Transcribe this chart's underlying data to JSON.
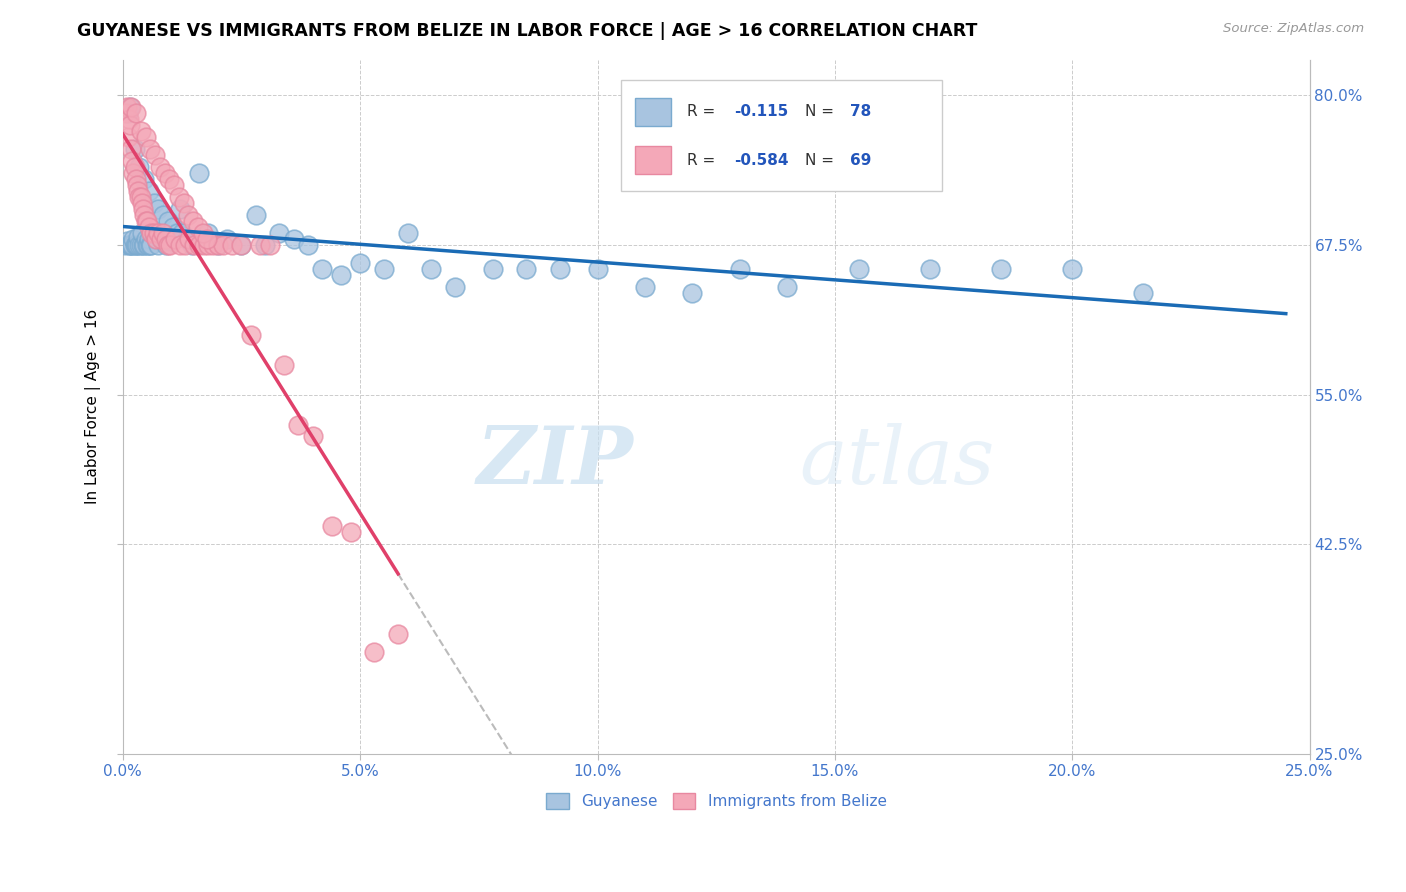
{
  "title": "GUYANESE VS IMMIGRANTS FROM BELIZE IN LABOR FORCE | AGE > 16 CORRELATION CHART",
  "source": "Source: ZipAtlas.com",
  "ylabel": "In Labor Force | Age > 16",
  "xlim": [
    0.0,
    25.0
  ],
  "ylim": [
    25.0,
    83.0
  ],
  "x_ticks": [
    0.0,
    5.0,
    10.0,
    15.0,
    20.0,
    25.0
  ],
  "y_ticks": [
    25.0,
    42.5,
    55.0,
    67.5,
    80.0
  ],
  "x_tick_labels": [
    "0.0%",
    "5.0%",
    "10.0%",
    "15.0%",
    "20.0%",
    "25.0%"
  ],
  "y_tick_labels": [
    "25.0%",
    "42.5%",
    "55.0%",
    "67.5%",
    "80.0%"
  ],
  "blue_color": "#a8c4e0",
  "pink_color": "#f4a8b8",
  "blue_edge_color": "#7aaacf",
  "pink_edge_color": "#e888a0",
  "blue_line_color": "#1a6bb5",
  "pink_line_color": "#e0406a",
  "R_blue": -0.115,
  "N_blue": 78,
  "R_pink": -0.584,
  "N_pink": 69,
  "legend_label_blue": "Guyanese",
  "legend_label_pink": "Immigrants from Belize",
  "watermark_zip": "ZIP",
  "watermark_atlas": "atlas",
  "blue_scatter_x": [
    0.05,
    0.08,
    0.1,
    0.12,
    0.15,
    0.18,
    0.2,
    0.22,
    0.25,
    0.28,
    0.3,
    0.32,
    0.35,
    0.38,
    0.4,
    0.42,
    0.45,
    0.48,
    0.5,
    0.52,
    0.55,
    0.58,
    0.6,
    0.65,
    0.7,
    0.75,
    0.8,
    0.85,
    0.9,
    0.95,
    1.0,
    1.1,
    1.2,
    1.4,
    1.6,
    1.8,
    2.0,
    2.2,
    2.5,
    2.8,
    3.0,
    3.3,
    3.6,
    3.9,
    4.2,
    4.6,
    5.0,
    5.5,
    6.0,
    6.5,
    7.0,
    7.8,
    8.5,
    9.2,
    10.0,
    11.0,
    12.0,
    13.0,
    14.0,
    15.5,
    17.0,
    18.5,
    20.0,
    21.5,
    0.15,
    0.25,
    0.35,
    0.45,
    0.55,
    0.65,
    0.75,
    0.85,
    0.95,
    1.05,
    1.15,
    1.25,
    1.35,
    1.45
  ],
  "blue_scatter_y": [
    67.5,
    67.8,
    78.5,
    67.5,
    67.5,
    67.5,
    67.5,
    68.0,
    67.5,
    67.5,
    67.5,
    68.2,
    67.5,
    67.5,
    68.5,
    67.5,
    67.5,
    68.0,
    67.5,
    67.5,
    68.0,
    67.5,
    67.5,
    68.5,
    68.0,
    67.5,
    68.5,
    68.0,
    67.5,
    68.0,
    67.8,
    68.5,
    70.5,
    68.0,
    73.5,
    68.5,
    67.5,
    68.0,
    67.5,
    70.0,
    67.5,
    68.5,
    68.0,
    67.5,
    65.5,
    65.0,
    66.0,
    65.5,
    68.5,
    65.5,
    64.0,
    65.5,
    65.5,
    65.5,
    65.5,
    64.0,
    63.5,
    65.5,
    64.0,
    65.5,
    65.5,
    65.5,
    65.5,
    63.5,
    79.0,
    75.5,
    74.0,
    73.0,
    72.0,
    71.0,
    70.5,
    70.0,
    69.5,
    69.0,
    68.5,
    68.5,
    68.0,
    67.5
  ],
  "pink_scatter_x": [
    0.05,
    0.08,
    0.1,
    0.12,
    0.15,
    0.18,
    0.2,
    0.22,
    0.25,
    0.28,
    0.3,
    0.32,
    0.35,
    0.38,
    0.4,
    0.42,
    0.45,
    0.48,
    0.5,
    0.55,
    0.6,
    0.65,
    0.7,
    0.75,
    0.8,
    0.85,
    0.9,
    0.95,
    1.0,
    1.1,
    1.2,
    1.3,
    1.4,
    1.5,
    1.6,
    1.7,
    1.8,
    1.9,
    2.0,
    2.1,
    2.3,
    2.5,
    2.7,
    2.9,
    3.1,
    3.4,
    3.7,
    4.0,
    4.4,
    4.8,
    5.3,
    5.8,
    0.18,
    0.28,
    0.38,
    0.48,
    0.58,
    0.68,
    0.78,
    0.88,
    0.98,
    1.08,
    1.18,
    1.28,
    1.38,
    1.48,
    1.58,
    1.68,
    1.78
  ],
  "pink_scatter_y": [
    78.5,
    79.0,
    76.5,
    78.0,
    77.5,
    75.5,
    74.5,
    73.5,
    74.0,
    73.0,
    72.5,
    72.0,
    71.5,
    71.5,
    71.0,
    70.5,
    70.0,
    69.5,
    69.5,
    69.0,
    68.5,
    68.5,
    68.0,
    68.5,
    68.0,
    68.5,
    68.0,
    67.5,
    67.5,
    68.0,
    67.5,
    67.5,
    68.0,
    67.5,
    67.5,
    67.5,
    67.5,
    67.5,
    67.5,
    67.5,
    67.5,
    67.5,
    60.0,
    67.5,
    67.5,
    57.5,
    52.5,
    51.5,
    44.0,
    43.5,
    33.5,
    35.0,
    79.0,
    78.5,
    77.0,
    76.5,
    75.5,
    75.0,
    74.0,
    73.5,
    73.0,
    72.5,
    71.5,
    71.0,
    70.0,
    69.5,
    69.0,
    68.5,
    68.0
  ]
}
